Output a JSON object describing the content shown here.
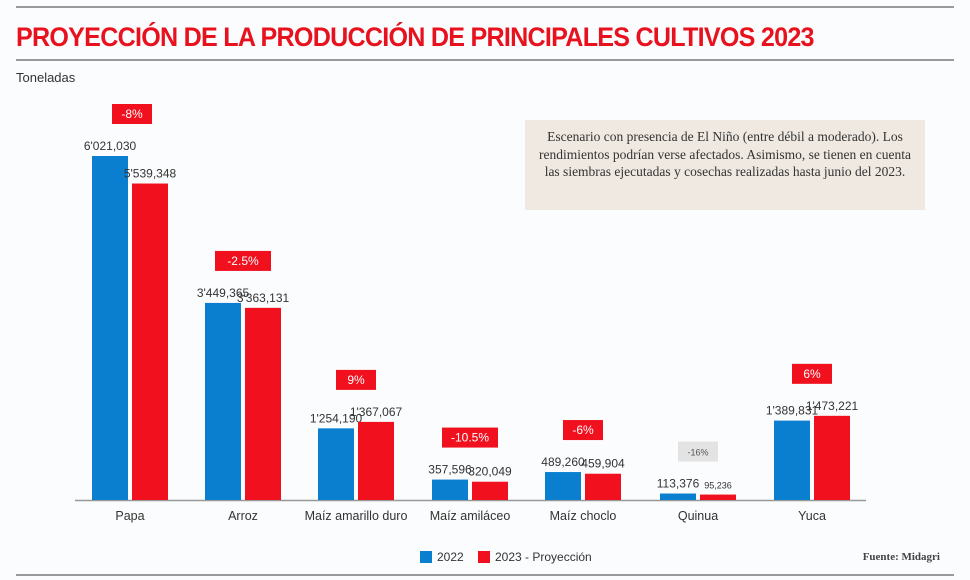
{
  "chart_data": {
    "type": "bar",
    "title": "PROYECCIÓN DE LA PRODUCCIÓN DE PRINCIPALES CULTIVOS 2023",
    "ylabel": "Toneladas",
    "categories": [
      "Papa",
      "Arroz",
      "Maíz amarillo duro",
      "Maíz amiláceo",
      "Maíz choclo",
      "Quinua",
      "Yuca"
    ],
    "series": [
      {
        "name": "2022",
        "color": "#0a7fd0",
        "values": [
          6021030,
          3449365,
          1254190,
          357596,
          489260,
          113376,
          1389831
        ],
        "labels": [
          "6'021,030",
          "3'449,365",
          "1'254,190",
          "357,596",
          "489,260",
          "113,376",
          "1'389,831"
        ]
      },
      {
        "name": "2023 - Proyección",
        "color": "#f0101e",
        "values": [
          5539348,
          3363131,
          1367067,
          320049,
          459904,
          95236,
          1473221
        ],
        "labels": [
          "5'539,348",
          "3'363,131",
          "1'367,067",
          "320,049",
          "459,904",
          "95,236",
          "1'473,221"
        ]
      }
    ],
    "changes": [
      "-8%",
      "-2.5%",
      "9%",
      "-10.5%",
      "-6%",
      "-16%",
      "6%"
    ],
    "change_highlight": [
      true,
      true,
      true,
      true,
      true,
      false,
      true
    ],
    "ylim": [
      0,
      6500000
    ],
    "grid": false,
    "legend": "bottom"
  },
  "note": "Escenario con presencia de El Niño (entre débil a moderado). Los rendimientos podrían verse afectados. Asimismo, se tienen en cuenta las siembras ejecutadas y cosechas realizadas hasta junio del 2023.",
  "source": "Fuente: Midagri"
}
